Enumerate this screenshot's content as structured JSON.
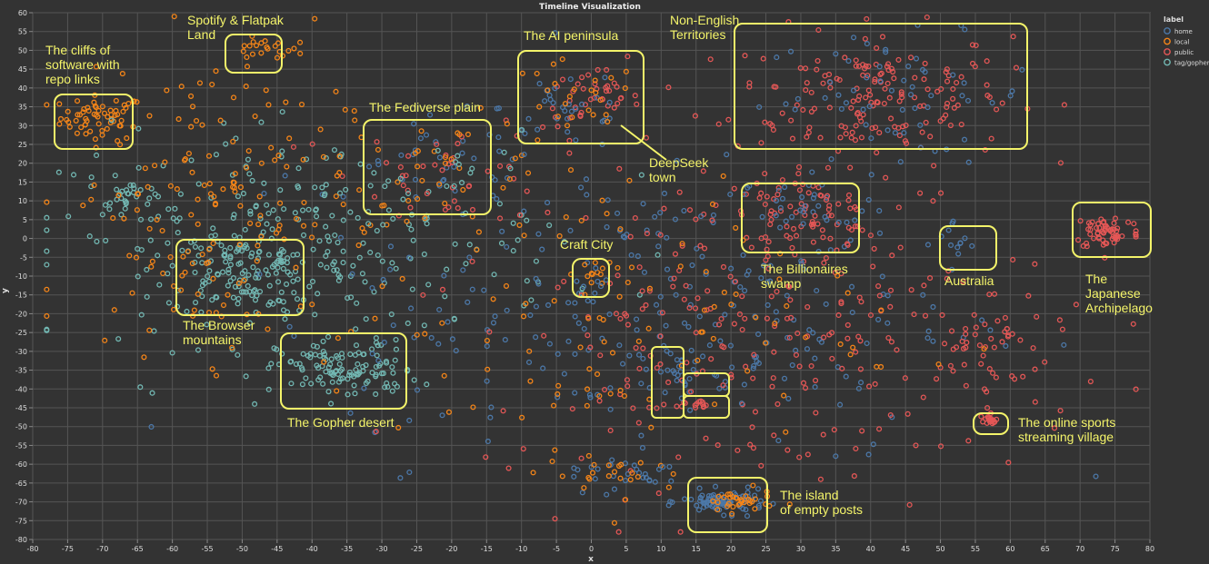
{
  "chart_data": {
    "type": "scatter",
    "title": "Timeline Visualization",
    "xlabel": "x",
    "ylabel": "y",
    "xlim": [
      -80,
      80
    ],
    "ylim": [
      -80,
      60
    ],
    "x_ticks": [
      -80,
      -75,
      -70,
      -65,
      -60,
      -55,
      -50,
      -45,
      -40,
      -35,
      -30,
      -25,
      -20,
      -15,
      -10,
      -5,
      0,
      5,
      10,
      15,
      20,
      25,
      30,
      35,
      40,
      45,
      50,
      55,
      60,
      65,
      70,
      75,
      80
    ],
    "y_ticks": [
      60,
      55,
      50,
      45,
      40,
      35,
      30,
      25,
      20,
      15,
      10,
      5,
      0,
      -5,
      -10,
      -15,
      -20,
      -25,
      -30,
      -35,
      -40,
      -45,
      -50,
      -55,
      -60,
      -65,
      -70,
      -75,
      -80
    ],
    "grid": true,
    "legend": {
      "title": "label",
      "position": "top-right",
      "entries": [
        {
          "name": "home",
          "color": "#4c78a8"
        },
        {
          "name": "local",
          "color": "#f58518"
        },
        {
          "name": "public",
          "color": "#e45756"
        },
        {
          "name": "tag/gopher",
          "color": "#72b7b2"
        }
      ]
    },
    "clusters": [
      {
        "series": "local",
        "cx": -70,
        "cy": 32,
        "sx": 3,
        "sy": 3,
        "n": 60
      },
      {
        "series": "local",
        "cx": -47,
        "cy": 50,
        "sx": 2.5,
        "sy": 1.5,
        "n": 20
      },
      {
        "series": "public",
        "cx": 40,
        "cy": 38,
        "sx": 10,
        "sy": 9,
        "n": 170
      },
      {
        "series": "home",
        "cx": 44,
        "cy": 38,
        "sx": 10,
        "sy": 8,
        "n": 60
      },
      {
        "series": "public",
        "cx": 0,
        "cy": 37,
        "sx": 3.5,
        "sy": 4,
        "n": 40
      },
      {
        "series": "home",
        "cx": -3,
        "cy": 35,
        "sx": 5,
        "sy": 6,
        "n": 30
      },
      {
        "series": "local",
        "cx": -3,
        "cy": 35,
        "sx": 5,
        "sy": 6,
        "n": 25
      },
      {
        "series": "home",
        "cx": -20,
        "cy": 18,
        "sx": 7,
        "sy": 7,
        "n": 40
      },
      {
        "series": "public",
        "cx": -20,
        "cy": 18,
        "sx": 7,
        "sy": 7,
        "n": 40
      },
      {
        "series": "local",
        "cx": -20,
        "cy": 18,
        "sx": 7,
        "sy": 7,
        "n": 25
      },
      {
        "series": "public",
        "cx": 30,
        "cy": 6,
        "sx": 6,
        "sy": 5,
        "n": 70
      },
      {
        "series": "home",
        "cx": 30,
        "cy": 6,
        "sx": 6,
        "sy": 5,
        "n": 30
      },
      {
        "series": "public",
        "cx": 74,
        "cy": 2,
        "sx": 2.5,
        "sy": 2.5,
        "n": 60
      },
      {
        "series": "home",
        "cx": 52,
        "cy": -2,
        "sx": 2,
        "sy": 3.5,
        "n": 12
      },
      {
        "series": "local",
        "cx": 0,
        "cy": -10,
        "sx": 1,
        "sy": 2,
        "n": 10
      },
      {
        "series": "tag/gopher",
        "cx": -50,
        "cy": -9,
        "sx": 5.5,
        "sy": 5.5,
        "n": 120
      },
      {
        "series": "tag/gopher",
        "cx": -35,
        "cy": -35,
        "sx": 5,
        "sy": 4,
        "n": 110
      },
      {
        "series": "tag/gopher",
        "cx": -40,
        "cy": 0,
        "sx": 18,
        "sy": 14,
        "n": 260
      },
      {
        "series": "tag/gopher",
        "cx": -66,
        "cy": 10,
        "sx": 2,
        "sy": 3,
        "n": 30
      },
      {
        "series": "home",
        "cx": 19,
        "cy": -70,
        "sx": 3,
        "sy": 1.5,
        "n": 80
      },
      {
        "series": "local",
        "cx": 21,
        "cy": -70,
        "sx": 2.5,
        "sy": 1.5,
        "n": 35
      },
      {
        "series": "public",
        "cx": 57,
        "cy": -48.5,
        "sx": 0.7,
        "sy": 0.8,
        "n": 16
      },
      {
        "series": "public",
        "cx": 16,
        "cy": -44,
        "sx": 2.5,
        "sy": 0.7,
        "n": 16
      },
      {
        "series": "home",
        "cx": 12,
        "cy": -36,
        "sx": 1.5,
        "sy": 4,
        "n": 20
      },
      {
        "series": "local",
        "cx": -55,
        "cy": 10,
        "sx": 10,
        "sy": 20,
        "n": 160
      },
      {
        "series": "home",
        "cx": 10,
        "cy": -20,
        "sx": 22,
        "sy": 20,
        "n": 260
      },
      {
        "series": "public",
        "cx": 25,
        "cy": -22,
        "sx": 20,
        "sy": 22,
        "n": 260
      },
      {
        "series": "local",
        "cx": 0,
        "cy": -20,
        "sx": 20,
        "sy": 22,
        "n": 120
      },
      {
        "series": "public",
        "cx": 55,
        "cy": -30,
        "sx": 5,
        "sy": 8,
        "n": 40
      },
      {
        "series": "home",
        "cx": 5,
        "cy": -62,
        "sx": 5,
        "sy": 2,
        "n": 25
      },
      {
        "series": "local",
        "cx": 3,
        "cy": -62,
        "sx": 5,
        "sy": 2,
        "n": 20
      }
    ],
    "annotations": [
      {
        "id": "cliffs",
        "lines": [
          "The cliffs of",
          "software with",
          "repo links"
        ]
      },
      {
        "id": "spotify",
        "lines": [
          "Spotify & Flatpak",
          "Land"
        ]
      },
      {
        "id": "non-english",
        "lines": [
          "Non-English",
          "Territories"
        ]
      },
      {
        "id": "ai",
        "lines": [
          "The AI peninsula"
        ]
      },
      {
        "id": "fediverse",
        "lines": [
          "The Fediverse plain"
        ]
      },
      {
        "id": "deepseek",
        "lines": [
          "DeepSeek",
          "town"
        ]
      },
      {
        "id": "craft",
        "lines": [
          "Craft City"
        ]
      },
      {
        "id": "billionaires",
        "lines": [
          "The Billionaires",
          "swamp"
        ]
      },
      {
        "id": "australia",
        "lines": [
          "Australia"
        ]
      },
      {
        "id": "japanese",
        "lines": [
          "The",
          "Japanese",
          "Archipelago"
        ]
      },
      {
        "id": "browser",
        "lines": [
          "The Browser",
          "mountains"
        ]
      },
      {
        "id": "gopher",
        "lines": [
          "The Gopher desert"
        ]
      },
      {
        "id": "sports",
        "lines": [
          "The online sports",
          "streaming village"
        ]
      },
      {
        "id": "island",
        "lines": [
          "The island",
          "of empty posts"
        ]
      }
    ]
  }
}
